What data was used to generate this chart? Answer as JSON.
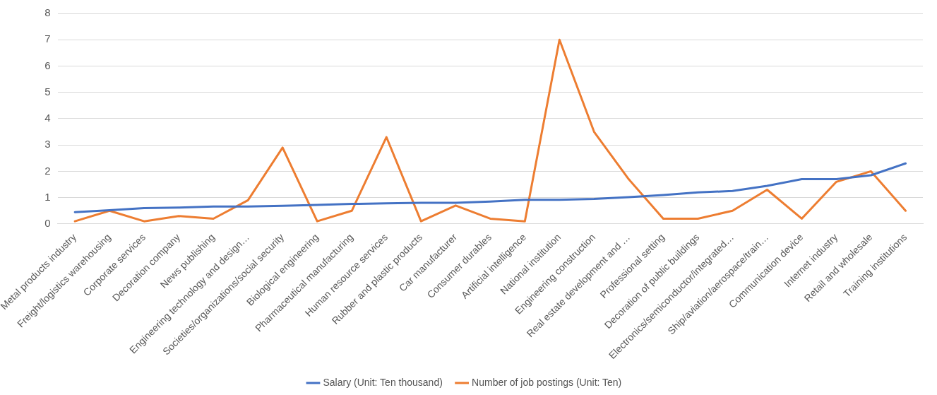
{
  "chart_data": {
    "type": "line",
    "categories": [
      "Metal products industry",
      "Freight/logistics warehousing",
      "Corporate services",
      "Decoration company",
      "News publishing",
      "Engineering technology and design…",
      "Societies/organizations/social security",
      "Biological engineering",
      "Pharmaceutical manufacturing",
      "Human resource services",
      "Rubber and plastic products",
      "Car manufacturer",
      "Consumer durables",
      "Artificial intelligence",
      "National institution",
      "Engineering construction",
      "Real estate development and …",
      "Professional setting",
      "Decoration of public buildings",
      "Electronics/semiconductor/integrated…",
      "Ship/aviation/aerospace/train…",
      "Communication device",
      "Internet industry",
      "Retail and wholesale",
      "Training institutions"
    ],
    "series": [
      {
        "name": "Salary (Unit: Ten thousand)",
        "color": "#4472c4",
        "values": [
          0.45,
          0.52,
          0.6,
          0.62,
          0.66,
          0.66,
          0.69,
          0.72,
          0.76,
          0.78,
          0.8,
          0.8,
          0.85,
          0.92,
          0.92,
          0.95,
          1.02,
          1.1,
          1.2,
          1.25,
          1.45,
          1.7,
          1.7,
          1.85,
          2.3
        ]
      },
      {
        "name": "Number of job postings (Unit: Ten)",
        "color": "#ed7d31",
        "values": [
          0.1,
          0.5,
          0.1,
          0.3,
          0.2,
          0.9,
          2.9,
          0.1,
          0.5,
          3.3,
          0.1,
          0.7,
          0.2,
          0.1,
          7,
          3.5,
          1.7,
          0.2,
          0.2,
          0.5,
          1.3,
          0.2,
          1.6,
          2.0,
          0.5
        ]
      }
    ],
    "ylim": [
      0,
      8
    ],
    "yticks": [
      0,
      1,
      2,
      3,
      4,
      5,
      6,
      7,
      8
    ],
    "grid": "y",
    "legend": "bottom",
    "marker": "none",
    "line_style": "solid"
  }
}
